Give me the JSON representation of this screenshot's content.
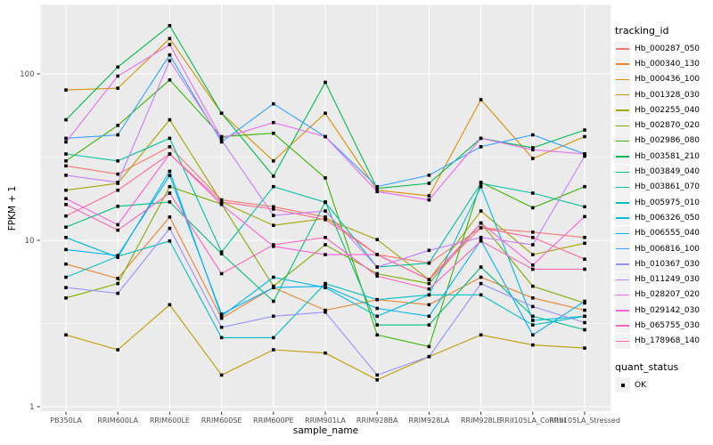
{
  "chart_data": {
    "type": "line",
    "xlabel": "sample_name",
    "ylabel": "FPKM + 1",
    "y_scale": "log10",
    "y_ticks": [
      1,
      10,
      100
    ],
    "y_minor_ticks": [
      3.1623,
      31.623
    ],
    "ylim": [
      0.94,
      260
    ],
    "grid": "on",
    "legend_position": "right",
    "point_shape": "filled-black-square",
    "categories": [
      "PB350LA",
      "RRIM600LA",
      "RRIM600LE",
      "RRIM600SE",
      "RRIM600PE",
      "RRIM901LA",
      "RRIM928BA",
      "RRIM928LA",
      "RRIM928LE",
      "RRII105LA_Control",
      "RRII105LA_Stressed"
    ],
    "series": [
      {
        "name": "Hb_000287_050",
        "color": "#F8766D",
        "values": [
          28,
          25,
          36.5,
          17.5,
          15.9,
          13.8,
          8.2,
          7.3,
          11.9,
          11.2,
          10.4
        ]
      },
      {
        "name": "Hb_000340_130",
        "color": "#EA8331",
        "values": [
          7.2,
          5.9,
          13.8,
          3.4,
          5.2,
          3.8,
          4.4,
          4.1,
          6.0,
          4.5,
          3.8
        ]
      },
      {
        "name": "Hb_000436_100",
        "color": "#D89000",
        "values": [
          80,
          82,
          163,
          58,
          30,
          58,
          20,
          18.5,
          70,
          31,
          42
        ]
      },
      {
        "name": "Hb_001328_030",
        "color": "#C09B00",
        "values": [
          2.7,
          2.2,
          4.1,
          1.55,
          2.2,
          2.1,
          1.45,
          2.0,
          2.7,
          2.35,
          2.25
        ]
      },
      {
        "name": "Hb_002255_040",
        "color": "#A3A500",
        "values": [
          20,
          22,
          53,
          17,
          12.3,
          13.5,
          10.1,
          5.8,
          15,
          8.2,
          9.6
        ]
      },
      {
        "name": "Hb_002870_020",
        "color": "#7CAE00",
        "values": [
          4.5,
          5.5,
          21,
          16.5,
          5.3,
          9.4,
          6.3,
          5.5,
          12.7,
          5.3,
          4.2
        ]
      },
      {
        "name": "Hb_002986_080",
        "color": "#39B600",
        "values": [
          30,
          49,
          92,
          42,
          44,
          23.7,
          2.7,
          2.3,
          22.3,
          15.7,
          21
        ]
      },
      {
        "name": "Hb_003581_210",
        "color": "#00BB4E",
        "values": [
          53,
          110,
          195,
          58,
          24.3,
          89,
          20.5,
          22,
          41,
          36,
          46
        ]
      },
      {
        "name": "Hb_003849_040",
        "color": "#00BF7D",
        "values": [
          12,
          16,
          17,
          8.3,
          4.3,
          17,
          3.1,
          3.1,
          6.9,
          3.5,
          2.9
        ]
      },
      {
        "name": "Hb_003861_070",
        "color": "#00C1A3",
        "values": [
          33,
          30,
          41,
          8.5,
          21,
          16.9,
          6.9,
          7.3,
          22,
          19.2,
          15.9
        ]
      },
      {
        "name": "Hb_005975_010",
        "color": "#00BFC4",
        "values": [
          6.0,
          8.0,
          9.9,
          2.6,
          2.6,
          5.5,
          4.4,
          4.7,
          4.7,
          3.1,
          3.5
        ]
      },
      {
        "name": "Hb_006326_050",
        "color": "#00BAE0",
        "values": [
          10.4,
          7.9,
          26,
          3.5,
          6.0,
          5.2,
          3.5,
          4.7,
          21,
          3.3,
          3.5
        ]
      },
      {
        "name": "Hb_006555_040",
        "color": "#00B0F6",
        "values": [
          8.8,
          8.1,
          24.5,
          3.6,
          5.2,
          5.3,
          3.9,
          3.5,
          10,
          2.7,
          4.3
        ]
      },
      {
        "name": "Hb_006816_100",
        "color": "#35A2FF",
        "values": [
          41,
          43,
          130,
          39,
          66,
          42,
          21,
          24.6,
          36.5,
          43,
          33
        ]
      },
      {
        "name": "Hb_010367_030",
        "color": "#9590FF",
        "values": [
          5.2,
          4.8,
          11.8,
          3.0,
          3.5,
          3.7,
          1.55,
          2.0,
          5.5,
          4.0,
          3.2
        ]
      },
      {
        "name": "Hb_011249_030",
        "color": "#C77CFF",
        "values": [
          24.6,
          22.3,
          120,
          40,
          14.1,
          15,
          6.9,
          8.7,
          10.4,
          9.4,
          32
        ]
      },
      {
        "name": "Hb_028207_020",
        "color": "#E76BF3",
        "values": [
          39,
          97,
          150,
          41,
          51,
          42,
          19.6,
          17.5,
          41,
          35,
          33
        ]
      },
      {
        "name": "Hb_029142_030",
        "color": "#FA62DB",
        "values": [
          17.8,
          12.4,
          33,
          16.4,
          9.2,
          8.2,
          8.2,
          5.8,
          12.7,
          7.1,
          13.9
        ]
      },
      {
        "name": "Hb_065755_030",
        "color": "#FF62BC",
        "values": [
          16.4,
          11.5,
          19.2,
          6.3,
          9.4,
          10.4,
          6.1,
          5.1,
          9.9,
          6.7,
          6.7
        ]
      },
      {
        "name": "Hb_178968_140",
        "color": "#FF6A98",
        "values": [
          14,
          20,
          33,
          17,
          15.4,
          13.3,
          8.2,
          5.8,
          11.9,
          10.4,
          7.7
        ]
      }
    ],
    "legend": {
      "tracking_title": "tracking_id",
      "quant_title": "quant_status",
      "quant_value": "OK"
    },
    "colors": {
      "panel_background": "#EBEBEB",
      "gridline": "#FFFFFF",
      "tick_mark": "#333333",
      "tick_label": "#4D4D4D",
      "point": "#000000",
      "legend_key_background": "#F2F2F2"
    }
  }
}
